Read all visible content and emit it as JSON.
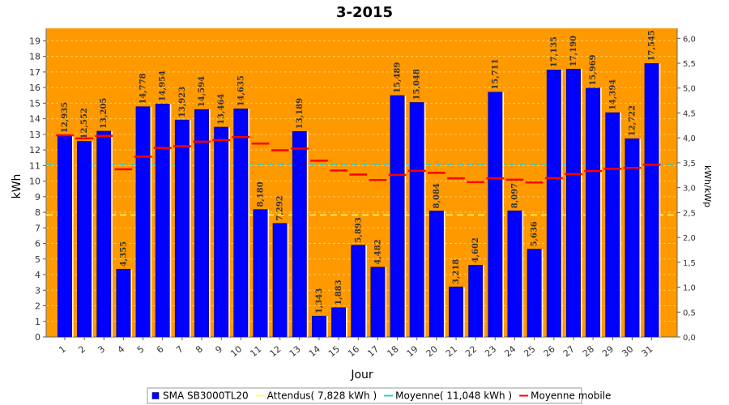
{
  "chart_data": {
    "type": "bar",
    "title": "3-2015",
    "xlabel": "Jour",
    "ylabel": "kWh",
    "y2label": "kWh/kWp",
    "ylim": [
      0,
      19.8
    ],
    "y2lim": [
      0,
      6.2
    ],
    "yticks": [
      "0",
      "1",
      "2",
      "3",
      "4",
      "5",
      "6",
      "7",
      "8",
      "9",
      "10",
      "11",
      "12",
      "13",
      "14",
      "15",
      "16",
      "17",
      "18",
      "19"
    ],
    "y2ticks": [
      "0,0",
      "0,5",
      "1,0",
      "1,5",
      "2,0",
      "2,5",
      "3,0",
      "3,5",
      "4,0",
      "4,5",
      "5,0",
      "5,5",
      "6,0"
    ],
    "categories": [
      "1",
      "2",
      "3",
      "4",
      "5",
      "6",
      "7",
      "8",
      "9",
      "10",
      "11",
      "12",
      "13",
      "14",
      "15",
      "16",
      "17",
      "18",
      "19",
      "20",
      "21",
      "22",
      "23",
      "24",
      "25",
      "26",
      "27",
      "28",
      "29",
      "30",
      "31"
    ],
    "series": [
      {
        "name": "SMA SB3000TL20",
        "type": "bar",
        "color": "#0000ff",
        "values": [
          12.935,
          12.552,
          13.205,
          4.355,
          14.778,
          14.954,
          13.923,
          14.594,
          13.464,
          14.635,
          8.18,
          7.292,
          13.189,
          1.343,
          1.883,
          5.893,
          4.482,
          15.489,
          15.048,
          8.084,
          3.218,
          4.602,
          15.711,
          8.097,
          5.636,
          17.135,
          17.19,
          15.969,
          14.394,
          12.722,
          17.545
        ],
        "labels": [
          "12,935",
          "12,552",
          "13,205",
          "4,355",
          "14,778",
          "14,954",
          "13,923",
          "14,594",
          "13,464",
          "14,635",
          "8,180",
          "7,292",
          "13,189",
          "1,343",
          "1,883",
          "5,893",
          "4,482",
          "15,489",
          "15,048",
          "8,084",
          "3,218",
          "4,602",
          "15,711",
          "8,097",
          "5,636",
          "17,135",
          "17,190",
          "15,969",
          "14,394",
          "12,722",
          "17,545"
        ]
      },
      {
        "name": "Attendus( 7,828 kWh )",
        "type": "hline",
        "color": "#ffff66",
        "value": 7.828
      },
      {
        "name": "Moyenne( 11,048 kWh )",
        "type": "hline",
        "color": "#33cccc",
        "value": 11.048
      },
      {
        "name": "Moyenne mobile",
        "type": "step",
        "color": "#ff0000",
        "values": [
          12.94,
          12.74,
          12.9,
          10.76,
          11.57,
          12.13,
          12.24,
          12.53,
          12.63,
          12.83,
          12.41,
          11.98,
          12.08,
          11.31,
          10.68,
          10.42,
          10.07,
          10.4,
          10.66,
          10.53,
          10.18,
          9.93,
          10.18,
          10.09,
          9.91,
          10.19,
          10.45,
          10.65,
          10.79,
          10.85,
          11.05
        ]
      }
    ],
    "grid": true,
    "legend_position": "bottom"
  },
  "colors": {
    "plot_background": "#ff9900",
    "bar_fill": "#0000ff",
    "grid": "#ffcc66"
  }
}
